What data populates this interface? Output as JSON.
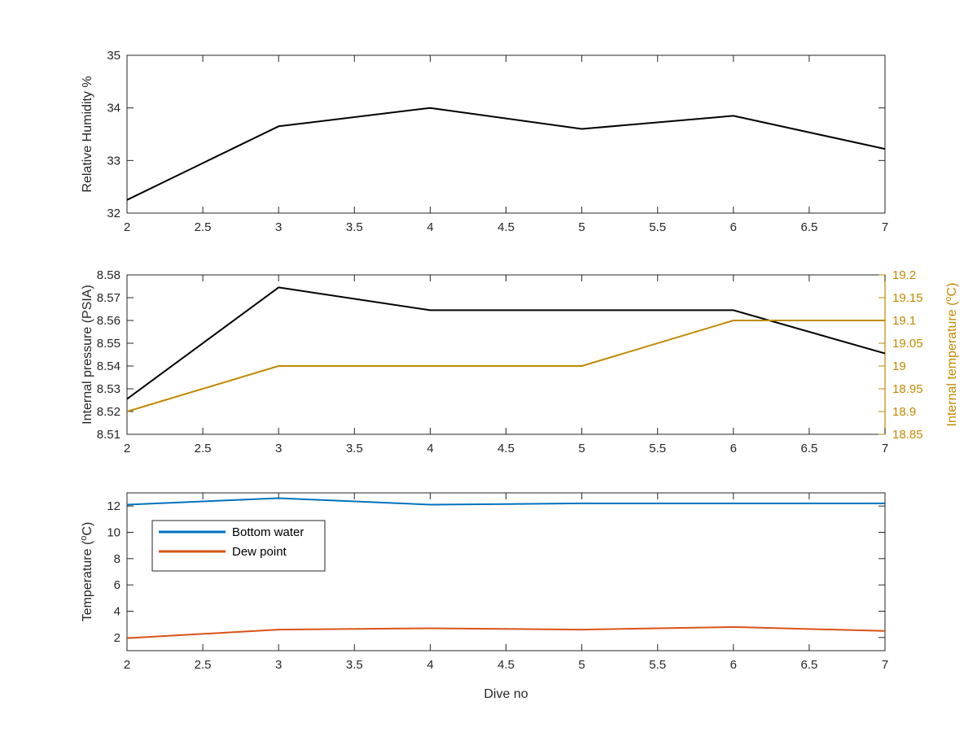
{
  "chart_data": [
    {
      "type": "line",
      "title": "",
      "xlabel": "",
      "ylabel": "Relative Humidity %",
      "xlim": [
        2,
        7
      ],
      "ylim": [
        32,
        35
      ],
      "x_ticks": [
        "2",
        "2.5",
        "3",
        "3.5",
        "4",
        "4.5",
        "5",
        "5.5",
        "6",
        "6.5",
        "7"
      ],
      "y_ticks": [
        "32",
        "33",
        "34",
        "35"
      ],
      "grid": false,
      "series": [
        {
          "x": [
            2,
            3,
            4,
            5,
            6,
            7
          ],
          "values": [
            32.25,
            33.65,
            34.0,
            33.6,
            33.85,
            33.22
          ],
          "color": "#000000"
        }
      ]
    },
    {
      "type": "line",
      "title": "",
      "xlabel": "",
      "ylabel": "Internal pressure (PSIA)",
      "ylabel_right": "Internal temperature (°C)",
      "xlim": [
        2,
        7
      ],
      "ylim": [
        8.51,
        8.58
      ],
      "ylim_right": [
        18.85,
        19.2
      ],
      "x_ticks": [
        "2",
        "2.5",
        "3",
        "3.5",
        "4",
        "4.5",
        "5",
        "5.5",
        "6",
        "6.5",
        "7"
      ],
      "y_ticks": [
        "8.51",
        "8.52",
        "8.53",
        "8.54",
        "8.55",
        "8.56",
        "8.57",
        "8.58"
      ],
      "y_ticks_right": [
        "18.85",
        "18.9",
        "18.95",
        "19",
        "19.05",
        "19.1",
        "19.15",
        "19.2"
      ],
      "right_axis_color": "#c08a00",
      "grid": false,
      "series": [
        {
          "x": [
            2,
            3,
            4,
            5,
            6,
            7
          ],
          "values": [
            8.5255,
            8.5745,
            8.5645,
            8.5645,
            8.5645,
            8.5455
          ],
          "axis": "left",
          "color": "#000000"
        },
        {
          "x": [
            2,
            3,
            4,
            5,
            6,
            7
          ],
          "values": [
            18.9,
            19.0,
            19.0,
            19.0,
            19.1,
            19.1
          ],
          "axis": "right",
          "color": "#c08a00"
        }
      ]
    },
    {
      "type": "line",
      "title": "",
      "xlabel": "Dive no",
      "ylabel": "Temperature (°C)",
      "xlim": [
        2,
        7
      ],
      "ylim": [
        1,
        13
      ],
      "x_ticks": [
        "2",
        "2.5",
        "3",
        "3.5",
        "4",
        "4.5",
        "5",
        "5.5",
        "6",
        "6.5",
        "7"
      ],
      "y_ticks": [
        "2",
        "4",
        "6",
        "8",
        "10",
        "12"
      ],
      "grid": false,
      "legend": "upper-left",
      "series": [
        {
          "name": "Bottom water",
          "x": [
            2,
            3,
            4,
            5,
            6,
            7
          ],
          "values": [
            12.1,
            12.6,
            12.1,
            12.2,
            12.2,
            12.2
          ],
          "color": "#0072bd"
        },
        {
          "name": "Dew point",
          "x": [
            2,
            3,
            4,
            5,
            6,
            7
          ],
          "values": [
            1.95,
            2.6,
            2.7,
            2.6,
            2.8,
            2.5
          ],
          "color": "#d95319"
        }
      ]
    }
  ]
}
